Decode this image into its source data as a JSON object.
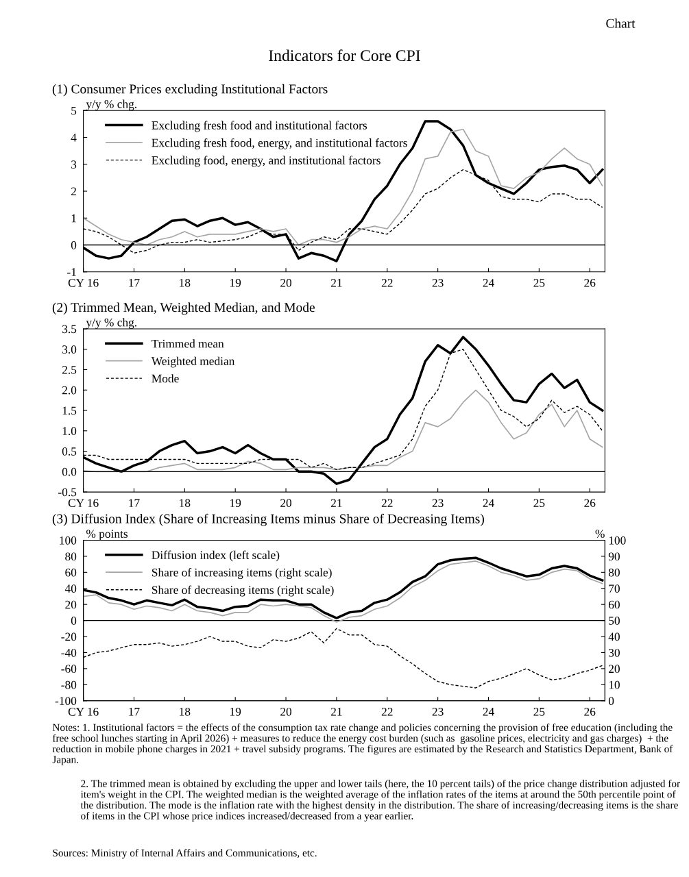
{
  "chart_data": [
    {
      "type": "line",
      "title": "(1) Consumer Prices excluding Institutional Factors",
      "ylabel": "y/y % chg.",
      "annotations": [
        "Chart",
        "Indicators for Core CPI"
      ],
      "x": [
        2016.0,
        2016.25,
        2016.5,
        2016.75,
        2017.0,
        2017.25,
        2017.5,
        2017.75,
        2018.0,
        2018.25,
        2018.5,
        2018.75,
        2019.0,
        2019.25,
        2019.5,
        2019.75,
        2020.0,
        2020.25,
        2020.5,
        2020.75,
        2021.0,
        2021.25,
        2021.5,
        2021.75,
        2022.0,
        2022.25,
        2022.5,
        2022.75,
        2023.0,
        2023.25,
        2023.5,
        2023.75,
        2024.0,
        2024.25,
        2024.5,
        2024.75,
        2025.0,
        2025.25,
        2025.5,
        2025.75,
        2026.0,
        2026.25
      ],
      "series": [
        {
          "name": "Excluding fresh food and institutional factors",
          "color": "#000000",
          "line_style": "solid",
          "values": [
            -0.1,
            -0.4,
            -0.5,
            -0.4,
            0.1,
            0.3,
            0.6,
            0.9,
            0.95,
            0.7,
            0.9,
            1.0,
            0.75,
            0.85,
            0.6,
            0.3,
            0.4,
            -0.5,
            -0.3,
            -0.4,
            -0.6,
            0.4,
            0.9,
            1.7,
            2.2,
            3.0,
            3.6,
            4.6,
            4.6,
            4.3,
            3.7,
            2.6,
            2.3,
            2.1,
            1.9,
            2.3,
            2.8,
            2.9,
            2.95,
            2.8,
            2.3,
            2.8
          ]
        },
        {
          "name": "Excluding fresh food, energy, and institutional factors",
          "color": "#a6a6a6",
          "line_style": "solid",
          "values": [
            1.0,
            0.7,
            0.4,
            0.2,
            0.1,
            0.0,
            0.2,
            0.3,
            0.5,
            0.3,
            0.4,
            0.4,
            0.4,
            0.5,
            0.6,
            0.5,
            0.6,
            0.0,
            0.2,
            0.2,
            0.1,
            0.3,
            0.6,
            0.7,
            0.6,
            1.2,
            2.0,
            3.2,
            3.3,
            4.2,
            4.3,
            3.5,
            3.3,
            2.2,
            2.1,
            2.5,
            2.7,
            3.2,
            3.6,
            3.2,
            3.0,
            2.2
          ]
        },
        {
          "name": "Excluding food, energy, and institutional factors",
          "color": "#000000",
          "line_style": "dashed",
          "values": [
            0.6,
            0.5,
            0.3,
            0.0,
            -0.3,
            -0.2,
            0.0,
            0.1,
            0.1,
            0.2,
            0.1,
            0.15,
            0.2,
            0.3,
            0.5,
            0.4,
            0.4,
            -0.2,
            0.1,
            0.3,
            0.2,
            0.6,
            0.6,
            0.5,
            0.4,
            0.8,
            1.3,
            1.9,
            2.1,
            2.5,
            2.8,
            2.6,
            2.4,
            1.8,
            1.7,
            1.7,
            1.6,
            1.9,
            1.9,
            1.7,
            1.7,
            1.4
          ]
        }
      ],
      "xlim": [
        2016,
        2026.3
      ],
      "xticks": [
        {
          "value": 2016,
          "label": "CY 16"
        },
        {
          "value": 2017,
          "label": "17"
        },
        {
          "value": 2018,
          "label": "18"
        },
        {
          "value": 2019,
          "label": "19"
        },
        {
          "value": 2020,
          "label": "20"
        },
        {
          "value": 2021,
          "label": "21"
        },
        {
          "value": 2022,
          "label": "22"
        },
        {
          "value": 2023,
          "label": "23"
        },
        {
          "value": 2024,
          "label": "24"
        },
        {
          "value": 2025,
          "label": "25"
        },
        {
          "value": 2026,
          "label": "26"
        }
      ],
      "ylim": [
        -1,
        5
      ],
      "yticks": [
        -1,
        0,
        1,
        2,
        3,
        4,
        5
      ],
      "ref_lines": [
        {
          "axis": "y",
          "value": 0,
          "color": "#000000"
        }
      ],
      "grid": false,
      "legend": "top left",
      "marker": "none"
    },
    {
      "type": "line",
      "title": "(2) Trimmed Mean, Weighted Median, and Mode",
      "ylabel": "y/y % chg.",
      "x": [
        2016.0,
        2016.25,
        2016.5,
        2016.75,
        2017.0,
        2017.25,
        2017.5,
        2017.75,
        2018.0,
        2018.25,
        2018.5,
        2018.75,
        2019.0,
        2019.25,
        2019.5,
        2019.75,
        2020.0,
        2020.25,
        2020.5,
        2020.75,
        2021.0,
        2021.25,
        2021.5,
        2021.75,
        2022.0,
        2022.25,
        2022.5,
        2022.75,
        2023.0,
        2023.25,
        2023.5,
        2023.75,
        2024.0,
        2024.25,
        2024.5,
        2024.75,
        2025.0,
        2025.25,
        2025.5,
        2025.75,
        2026.0,
        2026.25
      ],
      "series": [
        {
          "name": "Trimmed mean",
          "color": "#000000",
          "line_style": "solid",
          "values": [
            0.35,
            0.2,
            0.1,
            0.0,
            0.15,
            0.25,
            0.5,
            0.65,
            0.75,
            0.45,
            0.5,
            0.6,
            0.45,
            0.65,
            0.45,
            0.3,
            0.3,
            0.0,
            0.0,
            -0.05,
            -0.3,
            -0.2,
            0.2,
            0.6,
            0.8,
            1.4,
            1.8,
            2.7,
            3.1,
            2.9,
            3.3,
            3.0,
            2.6,
            2.15,
            1.75,
            1.7,
            2.15,
            2.4,
            2.05,
            2.25,
            1.7,
            1.5
          ]
        },
        {
          "name": "Weighted median",
          "color": "#a6a6a6",
          "line_style": "solid",
          "values": [
            0.02,
            0.0,
            0.0,
            0.0,
            0.0,
            0.0,
            0.1,
            0.15,
            0.2,
            0.05,
            0.05,
            0.05,
            0.1,
            0.25,
            0.2,
            0.05,
            0.05,
            0.1,
            0.1,
            0.1,
            0.05,
            0.1,
            0.1,
            0.15,
            0.15,
            0.35,
            0.5,
            1.2,
            1.1,
            1.3,
            1.7,
            2.0,
            1.7,
            1.2,
            0.8,
            0.95,
            1.4,
            1.65,
            1.1,
            1.5,
            0.8,
            0.6
          ]
        },
        {
          "name": "Mode",
          "color": "#000000",
          "line_style": "dashed",
          "values": [
            0.4,
            0.4,
            0.3,
            0.3,
            0.3,
            0.3,
            0.3,
            0.3,
            0.3,
            0.2,
            0.2,
            0.2,
            0.2,
            0.2,
            0.3,
            0.3,
            0.3,
            0.3,
            0.1,
            0.2,
            0.05,
            0.1,
            0.1,
            0.2,
            0.3,
            0.4,
            0.8,
            1.6,
            2.0,
            2.9,
            3.0,
            2.5,
            2.0,
            1.5,
            1.35,
            1.1,
            1.3,
            1.75,
            1.45,
            1.6,
            1.4,
            1.0
          ]
        }
      ],
      "xlim": [
        2016,
        2026.3
      ],
      "xticks": [
        {
          "value": 2016,
          "label": "CY 16"
        },
        {
          "value": 2017,
          "label": "17"
        },
        {
          "value": 2018,
          "label": "18"
        },
        {
          "value": 2019,
          "label": "19"
        },
        {
          "value": 2020,
          "label": "20"
        },
        {
          "value": 2021,
          "label": "21"
        },
        {
          "value": 2022,
          "label": "22"
        },
        {
          "value": 2023,
          "label": "23"
        },
        {
          "value": 2024,
          "label": "24"
        },
        {
          "value": 2025,
          "label": "25"
        },
        {
          "value": 2026,
          "label": "26"
        }
      ],
      "ylim": [
        -0.5,
        3.5
      ],
      "yticks": [
        {
          "value": -0.5,
          "label": "-0.5"
        },
        {
          "value": 0,
          "label": "0.0"
        },
        {
          "value": 0.5,
          "label": "0.5"
        },
        {
          "value": 1,
          "label": "1.0"
        },
        {
          "value": 1.5,
          "label": "1.5"
        },
        {
          "value": 2,
          "label": "2.0"
        },
        {
          "value": 2.5,
          "label": "2.5"
        },
        {
          "value": 3,
          "label": "3.0"
        },
        {
          "value": 3.5,
          "label": "3.5"
        }
      ],
      "ref_lines": [
        {
          "axis": "y",
          "value": 0,
          "color": "#000000"
        }
      ],
      "grid": false,
      "legend": "top left",
      "marker": "none"
    },
    {
      "type": "line",
      "title": "(3) Diffusion Index (Share of Increasing Items minus Share of Decreasing Items)",
      "ylabel": "% points",
      "y2label": "%",
      "annotations": [
        "Notes: 1. Institutional factors = the effects of the consumption tax rate change and policies concerning the provision of free education (including the free school lunches starting in April 2026) + measures to reduce the energy cost burden (such as  gasoline prices, electricity and gas charges)  + the reduction in mobile phone charges in 2021 + travel subsidy programs. The figures are estimated by the Research and Statistics Department, Bank of Japan.",
        "2. The trimmed mean is obtained by excluding the upper and lower tails (here, the 10 percent tails) of the price change distribution adjusted for item's weight in the CPI. The weighted median is the weighted average of the inflation rates of the items at around the 50th percentile point of the distribution. The mode is the inflation rate with the highest density in the distribution. The share of increasing/decreasing items is the share of items in the CPI whose price indices increased/decreased from a year earlier.",
        "Sources: Ministry of Internal Affairs and Communications, etc."
      ],
      "x": [
        2016.0,
        2016.25,
        2016.5,
        2016.75,
        2017.0,
        2017.25,
        2017.5,
        2017.75,
        2018.0,
        2018.25,
        2018.5,
        2018.75,
        2019.0,
        2019.25,
        2019.5,
        2019.75,
        2020.0,
        2020.25,
        2020.5,
        2020.75,
        2021.0,
        2021.25,
        2021.5,
        2021.75,
        2022.0,
        2022.25,
        2022.5,
        2022.75,
        2023.0,
        2023.25,
        2023.5,
        2023.75,
        2024.0,
        2024.25,
        2024.5,
        2024.75,
        2025.0,
        2025.25,
        2025.5,
        2025.75,
        2026.0,
        2026.25
      ],
      "series": [
        {
          "name": "Diffusion index (left scale)",
          "color": "#000000",
          "line_style": "solid",
          "values": [
            38,
            35,
            28,
            25,
            20,
            25,
            22,
            19,
            26,
            17,
            15,
            12,
            17,
            18,
            26,
            25,
            25,
            20,
            20,
            10,
            3,
            10,
            12,
            22,
            26,
            35,
            48,
            55,
            70,
            75,
            77,
            78,
            72,
            65,
            60,
            55,
            57,
            65,
            68,
            65,
            56,
            50
          ]
        },
        {
          "name": "Share of increasing items (right scale)",
          "color": "#a6a6a6",
          "line_style": "solid",
          "axis": "y2",
          "values": [
            65,
            66,
            61,
            60,
            57,
            59,
            58,
            56,
            60,
            56,
            55,
            53,
            55,
            55,
            60,
            59,
            60,
            59,
            58,
            53,
            49,
            52,
            53,
            57,
            59,
            64,
            71,
            75,
            81,
            85,
            86,
            87,
            84,
            80,
            78,
            75,
            76,
            80,
            82,
            81,
            76,
            73
          ]
        },
        {
          "name": "Share of decreasing items (right scale)",
          "color": "#000000",
          "line_style": "dashed",
          "axis": "y2",
          "values": [
            27,
            30,
            31,
            33,
            35,
            35,
            36,
            34,
            35,
            37,
            40,
            37,
            37,
            34,
            33,
            38,
            37,
            39,
            43,
            36,
            45,
            41,
            41,
            35,
            34,
            28,
            23,
            17,
            12,
            10,
            9,
            8,
            12,
            14,
            17,
            20,
            16,
            13,
            14,
            17,
            19,
            22
          ]
        }
      ],
      "xlim": [
        2016,
        2026.3
      ],
      "xticks": [
        {
          "value": 2016,
          "label": "CY 16"
        },
        {
          "value": 2017,
          "label": "17"
        },
        {
          "value": 2018,
          "label": "18"
        },
        {
          "value": 2019,
          "label": "19"
        },
        {
          "value": 2020,
          "label": "20"
        },
        {
          "value": 2021,
          "label": "21"
        },
        {
          "value": 2022,
          "label": "22"
        },
        {
          "value": 2023,
          "label": "23"
        },
        {
          "value": 2024,
          "label": "24"
        },
        {
          "value": 2025,
          "label": "25"
        },
        {
          "value": 2026,
          "label": "26"
        }
      ],
      "ylim": [
        -100,
        100
      ],
      "yticks": [
        -100,
        -80,
        -60,
        -40,
        -20,
        0,
        20,
        40,
        60,
        80,
        100
      ],
      "y2lim": [
        0,
        100
      ],
      "y2ticks": [
        0,
        10,
        20,
        30,
        40,
        50,
        60,
        70,
        80,
        90,
        100
      ],
      "ref_lines": [
        {
          "axis": "y",
          "value": 0,
          "color": "#000000"
        }
      ],
      "grid": false,
      "legend": "top left",
      "marker": "none"
    }
  ]
}
